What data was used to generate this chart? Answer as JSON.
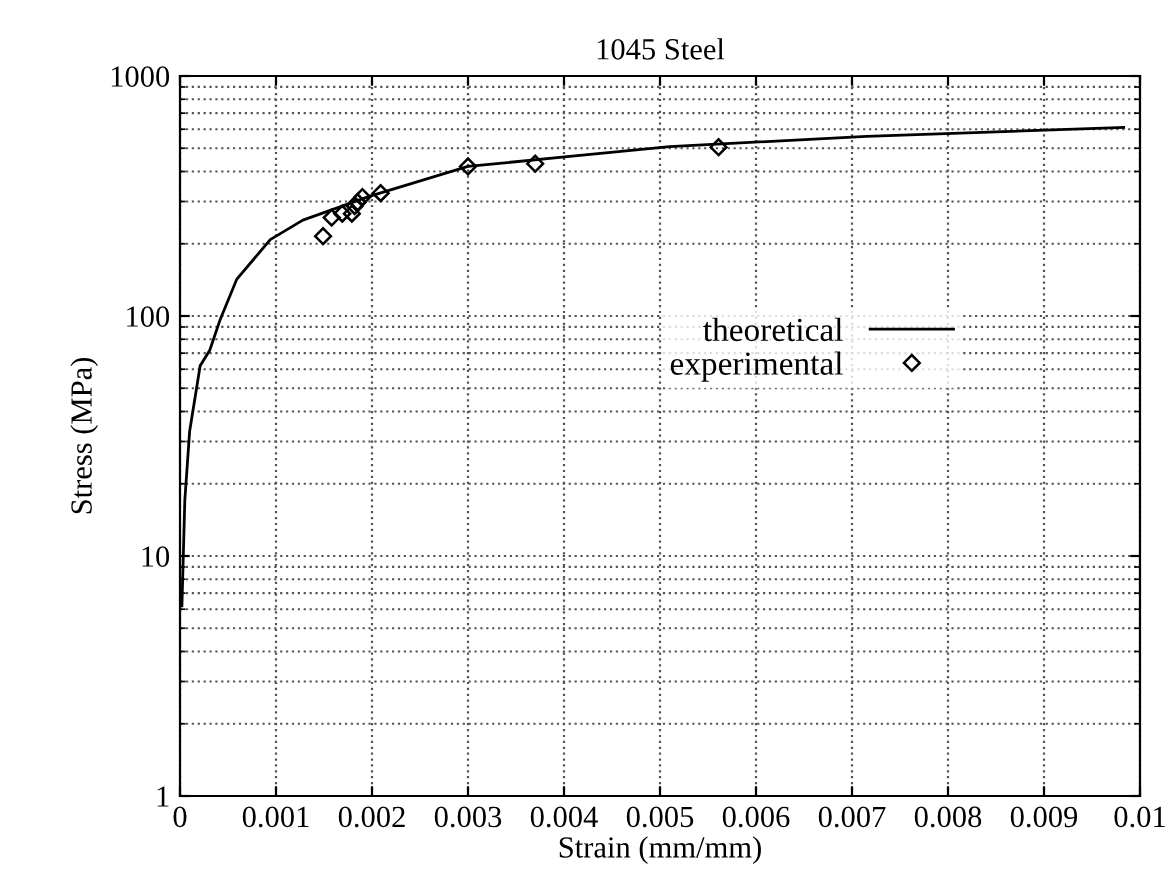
{
  "chart_data": {
    "type": "line",
    "title": "1045 Steel",
    "xlabel": "Strain (mm/mm)",
    "ylabel": "Stress (MPa)",
    "series": [
      {
        "name": "theoretical",
        "color": "#000000",
        "marker": "none",
        "line_style": "solid",
        "x": [
          2e-05,
          5e-05,
          0.0001,
          0.00021,
          0.00031,
          0.00042,
          0.00059,
          0.00094,
          0.00128,
          0.00198,
          0.003,
          0.00406,
          0.0051,
          0.00715,
          0.00983
        ],
        "values": [
          6.2,
          17,
          33,
          62,
          72,
          97,
          142,
          208,
          251,
          316,
          420,
          462,
          508,
          560,
          611
        ]
      },
      {
        "name": "experimental",
        "type": "scatter",
        "color": "#000000",
        "marker": "diamond",
        "x": [
          0.00149,
          0.00158,
          0.00169,
          0.00179,
          0.00182,
          0.00185,
          0.0019,
          0.00209,
          0.003,
          0.0037,
          0.00561
        ],
        "values": [
          215,
          257,
          267,
          267,
          287,
          298,
          313,
          325,
          420,
          431,
          505
        ]
      }
    ],
    "xlim": [
      0,
      0.01
    ],
    "xticks": [
      0,
      0.001,
      0.002,
      0.003,
      0.004,
      0.005,
      0.006,
      0.007,
      0.008,
      0.009,
      0.01
    ],
    "ylim": [
      1,
      1000
    ],
    "yticks": [
      1,
      10,
      100,
      1000
    ],
    "log": "y",
    "grid": true,
    "legend": "right"
  }
}
